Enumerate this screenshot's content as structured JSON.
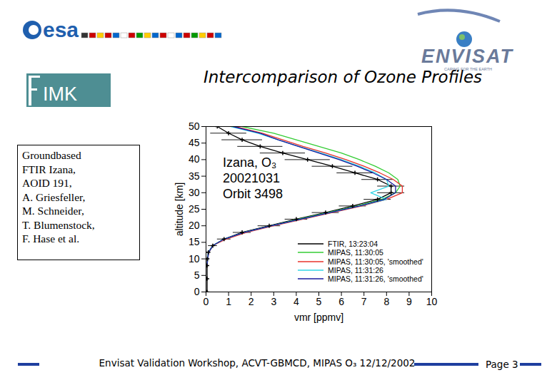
{
  "slide": {
    "logos": {
      "esa": "esa",
      "envisat": "ENVISAT",
      "envisat_tagline": "CARING FOR THE EARTH",
      "institute": "IMK"
    },
    "title": "Intercomparison of Ozone Profiles",
    "side_text": [
      "Groundbased",
      "FTIR Izana,",
      "AOID 191,",
      "A. Griesfeller,",
      "M. Schneider,",
      "T. Blumenstock,",
      "F. Hase et al."
    ],
    "footer": "Envisat Validation Workshop, ACVT-GBMCD,  MIPAS O₃ 12/12/2002",
    "page": "Page 3"
  },
  "chart_data": {
    "type": "line",
    "annotation": [
      "Izana, O₃",
      "20021031",
      "Orbit 3498"
    ],
    "xlabel": "vmr [ppmv]",
    "ylabel": "altitude [km]",
    "y": [
      0,
      4,
      8,
      10,
      12,
      14,
      16,
      18,
      20,
      22,
      24,
      26,
      28,
      30,
      32,
      34,
      36,
      38,
      40,
      42,
      44,
      46,
      48,
      50
    ],
    "series": [
      {
        "name": "FTIR,  13:23:04",
        "color": "#000000",
        "values": [
          0.05,
          0.05,
          0.05,
          0.06,
          0.1,
          0.3,
          0.8,
          1.6,
          2.8,
          4.0,
          5.3,
          6.5,
          7.6,
          8.2,
          8.2,
          7.6,
          6.6,
          5.6,
          4.5,
          3.4,
          2.4,
          1.6,
          1.0,
          0.5
        ],
        "x_errors": [
          0.05,
          0.05,
          0.05,
          0.05,
          0.1,
          0.2,
          0.3,
          0.4,
          0.5,
          0.5,
          0.6,
          0.6,
          0.6,
          0.6,
          0.6,
          0.7,
          0.8,
          0.9,
          1.0,
          1.0,
          1.0,
          0.9,
          0.8,
          0.6
        ]
      },
      {
        "name": "MIPAS, 11:30:05",
        "color": "#33cc33",
        "values": [
          null,
          null,
          0.05,
          0.07,
          0.12,
          0.3,
          0.8,
          1.7,
          2.9,
          4.1,
          5.4,
          6.7,
          7.8,
          8.4,
          8.6,
          8.5,
          8.1,
          7.5,
          6.8,
          6.0,
          5.0,
          4.0,
          3.0,
          1.6
        ]
      },
      {
        "name": "MIPAS, 11:30:05, 'smoothed'",
        "color": "#e8332a",
        "values": [
          null,
          null,
          0.05,
          0.07,
          0.12,
          0.3,
          0.9,
          1.8,
          3.0,
          4.3,
          5.6,
          6.9,
          8.0,
          8.7,
          8.7,
          8.3,
          7.7,
          7.0,
          6.2,
          5.3,
          4.3,
          3.4,
          2.5,
          1.3
        ]
      },
      {
        "name": "MIPAS, 11:31:26",
        "color": "#33d6e6",
        "values": [
          null,
          null,
          0.05,
          0.07,
          0.1,
          0.3,
          0.8,
          1.7,
          2.9,
          4.2,
          5.5,
          6.8,
          8.0,
          7.3,
          8.1,
          8.0,
          7.5,
          6.8,
          6.0,
          5.1,
          4.1,
          3.2,
          2.3,
          1.1
        ]
      },
      {
        "name": "MIPAS, 11:31:26, 'smoothed'",
        "color": "#1a1a9e",
        "values": [
          null,
          null,
          0.05,
          0.07,
          0.12,
          0.3,
          0.8,
          1.7,
          2.9,
          4.2,
          5.5,
          6.8,
          7.9,
          8.4,
          8.4,
          8.0,
          7.4,
          6.7,
          5.9,
          5.0,
          4.1,
          3.2,
          2.4,
          1.2
        ]
      }
    ],
    "xlim": [
      0,
      10
    ],
    "ylim": [
      0,
      50
    ],
    "xticks": [
      0,
      1,
      2,
      3,
      4,
      5,
      6,
      7,
      8,
      9,
      10
    ],
    "yticks": [
      0,
      5,
      10,
      15,
      20,
      25,
      30,
      35,
      40,
      45,
      50
    ],
    "grid": false,
    "legend": "bottom-right"
  }
}
